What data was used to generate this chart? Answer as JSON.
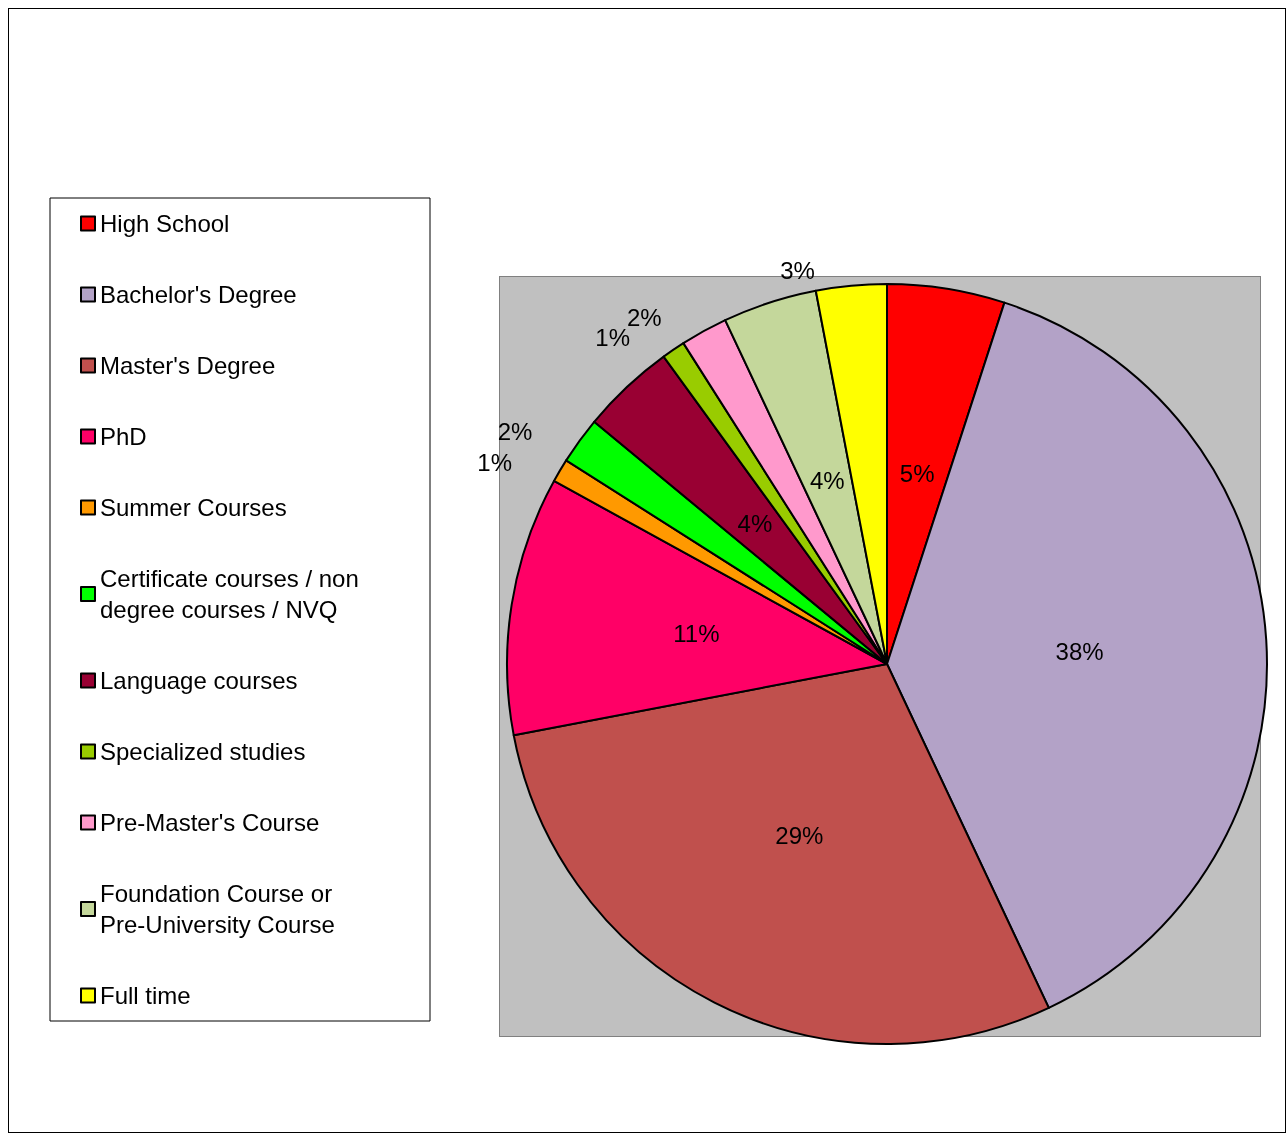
{
  "chart_data": {
    "type": "pie",
    "categories": [
      "High School",
      "Bachelor's Degree",
      "Master's Degree",
      "PhD",
      "Summer Courses",
      "Certificate courses / non degree courses / NVQ",
      "Language courses",
      "Specialized studies",
      "Pre-Master's Course",
      "Foundation Course or Pre-University Course",
      "Full time"
    ],
    "values": [
      5,
      38,
      29,
      11,
      1,
      2,
      4,
      1,
      2,
      4,
      3
    ],
    "value_labels": [
      "5%",
      "38%",
      "29%",
      "11%",
      "1%",
      "2%",
      "4%",
      "1%",
      "2%",
      "4%",
      "3%"
    ],
    "colors": [
      "#ff0000",
      "#b3a2c7",
      "#c0504d",
      "#ff0066",
      "#ff9900",
      "#00ff00",
      "#990033",
      "#99cc00",
      "#ff99cc",
      "#c4d79b",
      "#ffff00"
    ],
    "legend": "left"
  }
}
